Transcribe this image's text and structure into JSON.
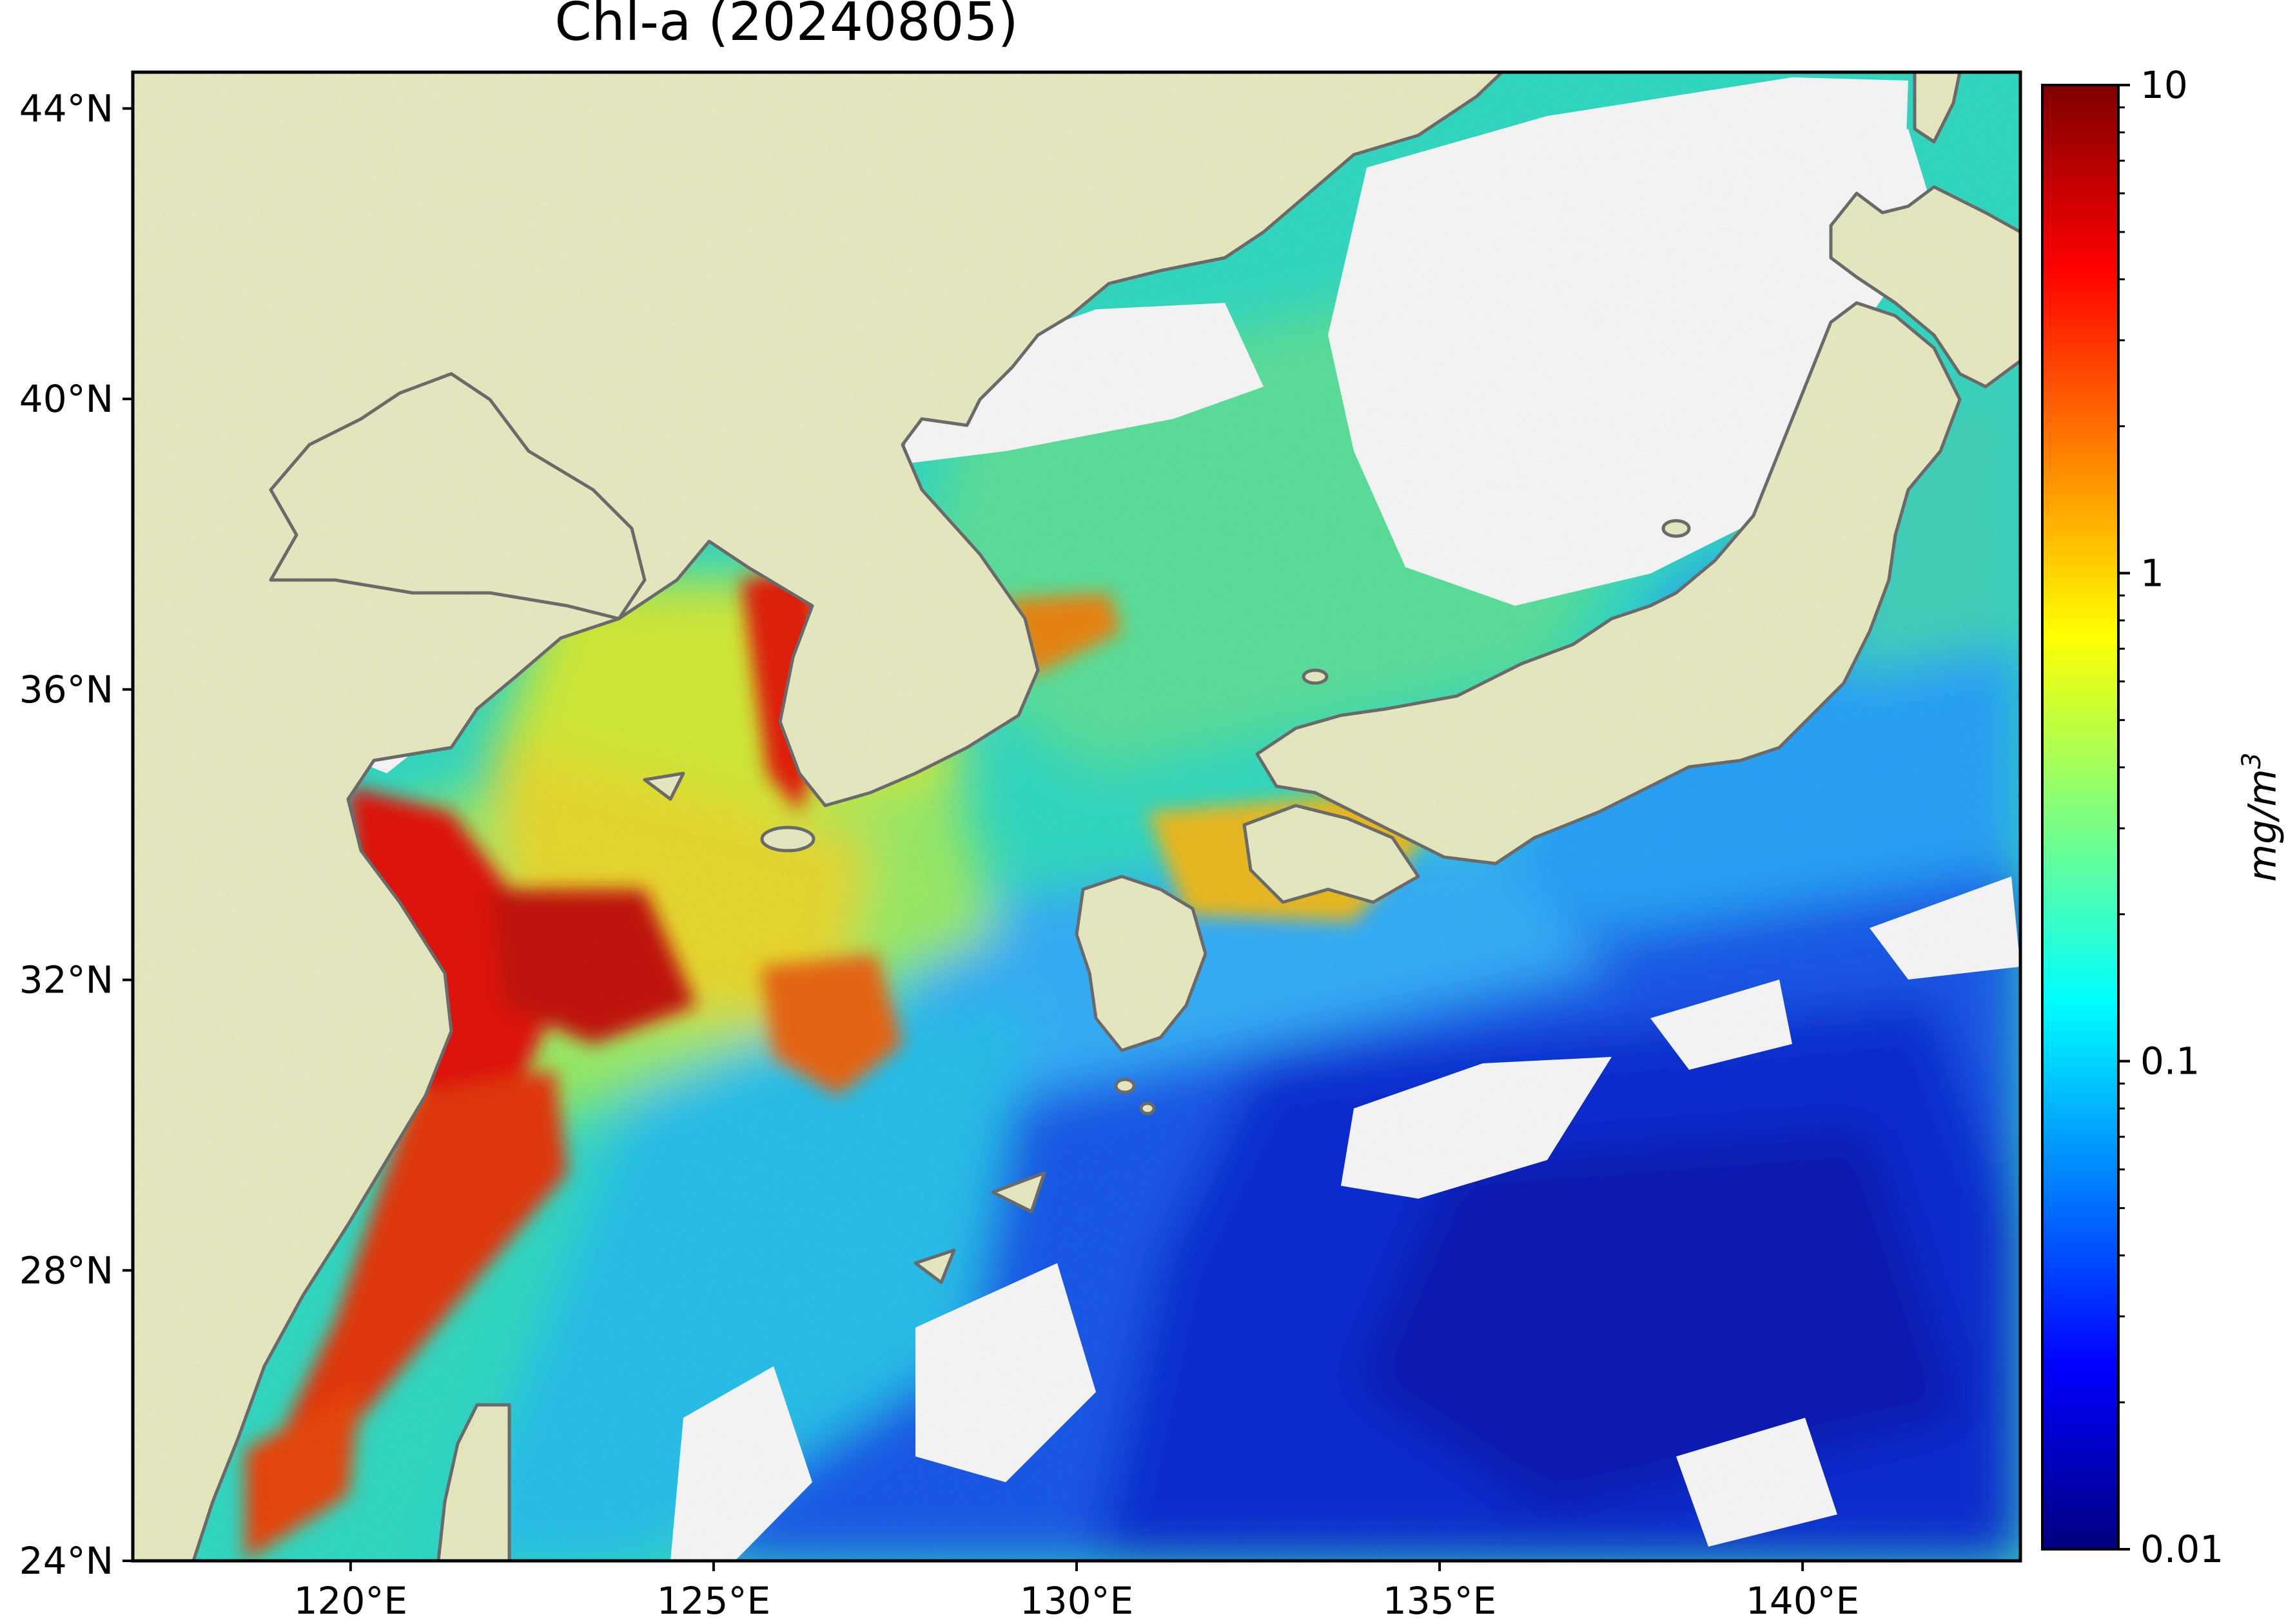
{
  "title": "Chl-a (20240805)",
  "map": {
    "extent": {
      "lon_min": 117,
      "lon_max": 143,
      "lat_min": 24,
      "lat_max": 44.5
    },
    "land_color": "#f0f2c8",
    "no_data_color": "#ffffff",
    "coastline_color": "#707070",
    "lon_ticks": [
      {
        "value": 120,
        "label": "120°E"
      },
      {
        "value": 125,
        "label": "125°E"
      },
      {
        "value": 130,
        "label": "130°E"
      },
      {
        "value": 135,
        "label": "135°E"
      },
      {
        "value": 140,
        "label": "140°E"
      }
    ],
    "lat_ticks": [
      {
        "value": 24,
        "label": "24°N"
      },
      {
        "value": 28,
        "label": "28°N"
      },
      {
        "value": 32,
        "label": "32°N"
      },
      {
        "value": 36,
        "label": "36°N"
      },
      {
        "value": 40,
        "label": "40°N"
      },
      {
        "value": 44,
        "label": "44°N"
      }
    ]
  },
  "colorbar": {
    "colormap": "jet",
    "scale": "log",
    "min": 0.01,
    "max": 10,
    "unit_main": "mg/m",
    "unit_exp": "3",
    "ticks": [
      {
        "value": 10,
        "label": "10"
      },
      {
        "value": 1,
        "label": "1"
      },
      {
        "value": 0.1,
        "label": "0.1"
      },
      {
        "value": 0.01,
        "label": "0.01"
      }
    ],
    "stops": [
      "#00007f",
      "#0000ff",
      "#007fff",
      "#00ffff",
      "#7fff7f",
      "#ffff00",
      "#ff7f00",
      "#ff0000",
      "#7f0000"
    ]
  }
}
